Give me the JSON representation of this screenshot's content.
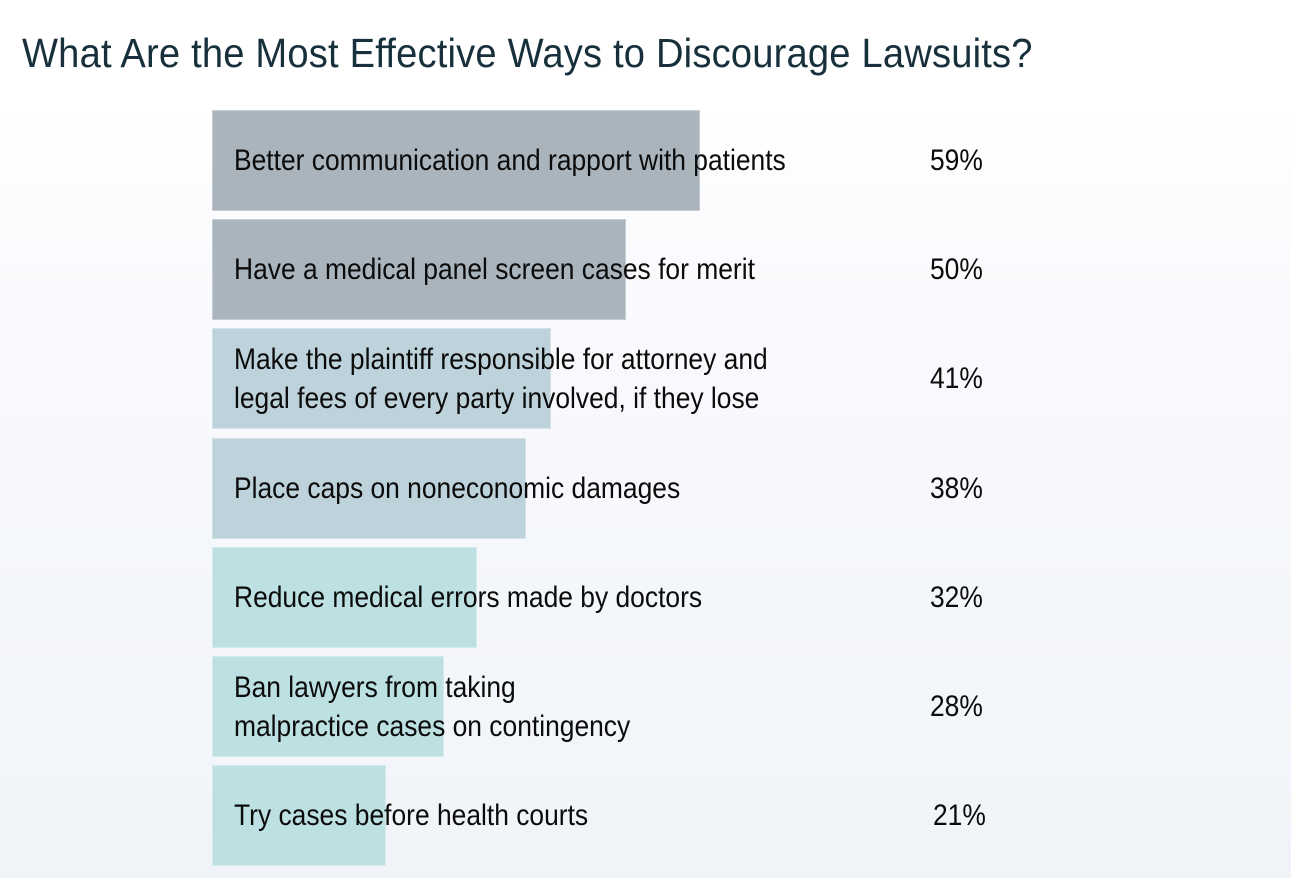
{
  "title": "What Are the Most Effective Ways to Discourage Lawsuits?",
  "chart_data": {
    "type": "bar",
    "orientation": "horizontal",
    "title": "What Are the Most Effective Ways to Discourage Lawsuits?",
    "xlabel": "",
    "ylabel": "",
    "grid": false,
    "legend": "none",
    "unit": "%",
    "categories": [
      "Better communication and rapport with patients",
      "Have a medical panel screen cases for merit",
      "Make the plaintiff responsible for attorney and legal fees of every party involved, if they lose",
      "Place caps on noneconomic damages",
      "Reduce medical errors made by doctors",
      "Ban lawyers from taking malpractice cases on contingency",
      "Try cases before health courts"
    ],
    "values": [
      59,
      50,
      41,
      38,
      32,
      28,
      21
    ],
    "xlim": [
      0,
      100
    ]
  },
  "rows": [
    {
      "label": "Better communication and rapport with patients",
      "value": 59,
      "value_label": "59%",
      "color": "#a9b4bc"
    },
    {
      "label": "Have a medical panel screen cases for merit",
      "value": 50,
      "value_label": "50%",
      "color": "#a9b4bc"
    },
    {
      "label": "Make the plaintiff responsible for attorney and\nlegal fees of every party involved, if they lose",
      "value": 41,
      "value_label": "41%",
      "color": "#bdd2da"
    },
    {
      "label": "Place caps on noneconomic damages",
      "value": 38,
      "value_label": "38%",
      "color": "#bdd2da"
    },
    {
      "label": "Reduce medical errors made by doctors",
      "value": 32,
      "value_label": "32%",
      "color": "#bde0e3"
    },
    {
      "label": "Ban lawyers from taking\nmalpractice cases on contingency",
      "value": 28,
      "value_label": "28%",
      "color": "#bde0e3"
    },
    {
      "label": "Try cases before health courts",
      "value": 21,
      "value_label": "21%",
      "color": "#bde0e3"
    }
  ],
  "colors": {
    "title": "#17303b",
    "text": "#0b0b0b",
    "bar_gray": "#a9b4bc",
    "bar_blue_gray": "#bdd2da",
    "bar_teal": "#bde0e3"
  }
}
